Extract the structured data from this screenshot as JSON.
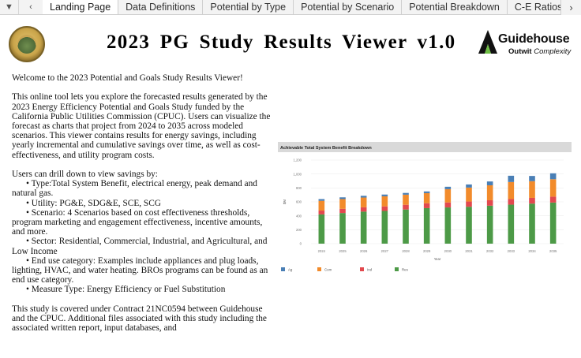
{
  "tabs": {
    "items": [
      "Landing Page",
      "Data Definitions",
      "Potential by Type",
      "Potential by Scenario",
      "Potential Breakdown",
      "C-E Ratios by"
    ],
    "active": 0
  },
  "header": {
    "title": "2023 PG Study Results Viewer v1.0",
    "logo_name": "Guidehouse",
    "logo_tag_bold": "Outwit",
    "logo_tag_italic": "Complexity",
    "logo_color": "#1a1a1a"
  },
  "intro": {
    "welcome": "Welcome to the 2023 Potential and Goals Study Results Viewer!",
    "description": "This online tool lets you explore the forecasted results generated by the 2023 Energy Efficiency Potential and Goals Study funded by the California Public Utilities Commission (CPUC). Users can visualize the forecast as charts that project from 2024 to 2035 across modeled scenarios. This viewer contains results for energy savings, including yearly incremental and cumulative savings over time, as well as cost-effectiveness, and utility program costs.",
    "drill_heading": "Users can drill down to view savings by:",
    "bullets": [
      "• Type:Total System Benefit, electrical energy, peak demand and natural gas.",
      "• Utility: PG&E, SDG&E, SCE, SCG",
      "• Scenario: 4 Scenarios based on cost effectiveness thresholds, program marketing and engagement effectiveness, incentive amounts, and more.",
      "• Sector: Residential, Commercial, Industrial, and Agricultural, and Low Income",
      "• End use category: Examples include appliances and plug loads, lighting, HVAC, and water heating. BROs programs can be found as an end use category.",
      "• Measure Type: Energy Efficiency or Fuel Substitution"
    ],
    "contract": "This study is covered under Contract 21NC0594 between Guidehouse and the CPUC. Additional files associated with this study including the associated written report, input databases, and"
  },
  "chart_data": {
    "type": "bar",
    "stacked": true,
    "title": "Achievable Total System Benefit Breakdown",
    "xlabel": "Year",
    "ylabel": "$M",
    "ylim": [
      0,
      1200
    ],
    "yticks": [
      0,
      200,
      400,
      600,
      800,
      1000,
      1200
    ],
    "categories": [
      "2024",
      "2025",
      "2026",
      "2027",
      "2028",
      "2029",
      "2030",
      "2031",
      "2032",
      "2033",
      "2034",
      "2035"
    ],
    "series": [
      {
        "name": "Res",
        "color": "#4d9a47",
        "values": [
          420,
          440,
          460,
          470,
          490,
          510,
          520,
          530,
          545,
          560,
          575,
          590
        ]
      },
      {
        "name": "Ind",
        "color": "#e2494e",
        "values": [
          55,
          60,
          62,
          65,
          68,
          70,
          72,
          75,
          78,
          80,
          82,
          85
        ]
      },
      {
        "name": "Com",
        "color": "#f28b2b",
        "values": [
          140,
          140,
          140,
          145,
          145,
          145,
          190,
          200,
          215,
          245,
          240,
          250
        ]
      },
      {
        "name": "Ag",
        "color": "#4a7fb5",
        "values": [
          25,
          25,
          25,
          25,
          25,
          25,
          35,
          45,
          55,
          90,
          75,
          85
        ]
      }
    ],
    "legend": [
      "Ag",
      "Com",
      "Ind",
      "Res"
    ],
    "legend_position": "bottom",
    "grid": true
  }
}
